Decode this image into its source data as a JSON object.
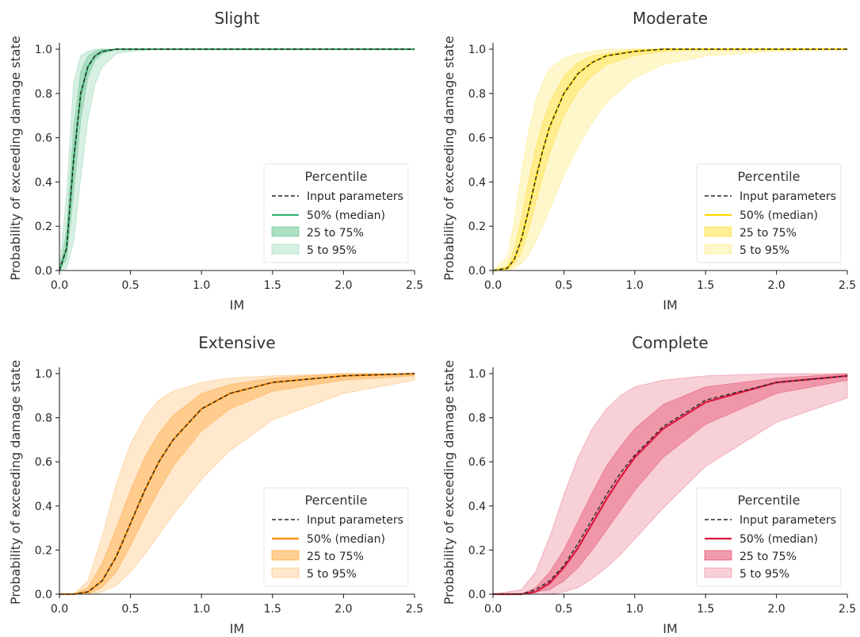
{
  "chart_data": [
    {
      "type": "area",
      "title": "Slight",
      "xlabel": "IM",
      "ylabel": "Probability of exceeding damage state",
      "xlim": [
        0,
        2.5
      ],
      "ylim": [
        0,
        1.0
      ],
      "xticks": [
        "0.0",
        "0.5",
        "1.0",
        "1.5",
        "2.0",
        "2.5"
      ],
      "yticks": [
        "0.0",
        "0.2",
        "0.4",
        "0.6",
        "0.8",
        "1.0"
      ],
      "color": "#3cb371",
      "legend": {
        "title": "Percentile",
        "position": "lower-right",
        "entries": [
          "Input parameters",
          "50% (median)",
          "25 to 75%",
          "5 to 95%"
        ]
      },
      "x": [
        0.0,
        0.05,
        0.1,
        0.15,
        0.2,
        0.25,
        0.3,
        0.4,
        0.5,
        0.7,
        1.0,
        1.5,
        2.0,
        2.5
      ],
      "series": [
        {
          "name": "Input parameters",
          "values": [
            0.0,
            0.1,
            0.5,
            0.8,
            0.92,
            0.97,
            0.99,
            1.0,
            1.0,
            1.0,
            1.0,
            1.0,
            1.0,
            1.0
          ]
        },
        {
          "name": "50% (median)",
          "values": [
            0.0,
            0.1,
            0.5,
            0.8,
            0.92,
            0.97,
            0.99,
            1.0,
            1.0,
            1.0,
            1.0,
            1.0,
            1.0,
            1.0
          ]
        },
        {
          "name": "25%",
          "values": [
            0.0,
            0.05,
            0.35,
            0.68,
            0.87,
            0.95,
            0.98,
            1.0,
            1.0,
            1.0,
            1.0,
            1.0,
            1.0,
            1.0
          ]
        },
        {
          "name": "75%",
          "values": [
            0.0,
            0.18,
            0.65,
            0.9,
            0.97,
            0.99,
            1.0,
            1.0,
            1.0,
            1.0,
            1.0,
            1.0,
            1.0,
            1.0
          ]
        },
        {
          "name": "5%",
          "values": [
            0.0,
            0.01,
            0.13,
            0.42,
            0.68,
            0.84,
            0.92,
            0.98,
            0.99,
            1.0,
            1.0,
            1.0,
            1.0,
            1.0
          ]
        },
        {
          "name": "95%",
          "values": [
            0.0,
            0.35,
            0.85,
            0.97,
            0.99,
            1.0,
            1.0,
            1.0,
            1.0,
            1.0,
            1.0,
            1.0,
            1.0,
            1.0
          ]
        }
      ]
    },
    {
      "type": "area",
      "title": "Moderate",
      "xlabel": "IM",
      "ylabel": "Probability of exceeding damage state",
      "xlim": [
        0,
        2.5
      ],
      "ylim": [
        0,
        1.0
      ],
      "xticks": [
        "0.0",
        "0.5",
        "1.0",
        "1.5",
        "2.0",
        "2.5"
      ],
      "yticks": [
        "0.0",
        "0.2",
        "0.4",
        "0.6",
        "0.8",
        "1.0"
      ],
      "color": "#ffd700",
      "legend": {
        "title": "Percentile",
        "position": "lower-right",
        "entries": [
          "Input parameters",
          "50% (median)",
          "25 to 75%",
          "5 to 95%"
        ]
      },
      "x": [
        0.0,
        0.1,
        0.15,
        0.2,
        0.25,
        0.3,
        0.35,
        0.4,
        0.5,
        0.6,
        0.7,
        0.8,
        1.0,
        1.2,
        1.5,
        2.0,
        2.5
      ],
      "series": [
        {
          "name": "Input parameters",
          "values": [
            0.0,
            0.01,
            0.05,
            0.14,
            0.27,
            0.41,
            0.54,
            0.65,
            0.8,
            0.89,
            0.94,
            0.97,
            0.99,
            1.0,
            1.0,
            1.0,
            1.0
          ]
        },
        {
          "name": "50% (median)",
          "values": [
            0.0,
            0.01,
            0.05,
            0.14,
            0.27,
            0.41,
            0.54,
            0.65,
            0.8,
            0.89,
            0.94,
            0.97,
            0.99,
            1.0,
            1.0,
            1.0,
            1.0
          ]
        },
        {
          "name": "25%",
          "values": [
            0.0,
            0.0,
            0.03,
            0.08,
            0.18,
            0.3,
            0.42,
            0.53,
            0.7,
            0.81,
            0.88,
            0.93,
            0.97,
            0.99,
            1.0,
            1.0,
            1.0
          ]
        },
        {
          "name": "75%",
          "values": [
            0.0,
            0.02,
            0.1,
            0.24,
            0.4,
            0.55,
            0.67,
            0.76,
            0.88,
            0.94,
            0.97,
            0.98,
            1.0,
            1.0,
            1.0,
            1.0,
            1.0
          ]
        },
        {
          "name": "5%",
          "values": [
            0.0,
            0.0,
            0.01,
            0.03,
            0.07,
            0.13,
            0.2,
            0.28,
            0.43,
            0.56,
            0.67,
            0.76,
            0.87,
            0.93,
            0.97,
            0.99,
            1.0
          ]
        },
        {
          "name": "95%",
          "values": [
            0.0,
            0.06,
            0.22,
            0.44,
            0.62,
            0.76,
            0.85,
            0.91,
            0.96,
            0.98,
            0.99,
            1.0,
            1.0,
            1.0,
            1.0,
            1.0,
            1.0
          ]
        }
      ]
    },
    {
      "type": "area",
      "title": "Extensive",
      "xlabel": "IM",
      "ylabel": "Probability of exceeding damage state",
      "xlim": [
        0,
        2.5
      ],
      "ylim": [
        0,
        1.0
      ],
      "xticks": [
        "0.0",
        "0.5",
        "1.0",
        "1.5",
        "2.0",
        "2.5"
      ],
      "yticks": [
        "0.0",
        "0.2",
        "0.4",
        "0.6",
        "0.8",
        "1.0"
      ],
      "color": "#ff8c00",
      "legend": {
        "title": "Percentile",
        "position": "lower-right",
        "entries": [
          "Input parameters",
          "50% (median)",
          "25 to 75%",
          "5 to 95%"
        ]
      },
      "x": [
        0.0,
        0.1,
        0.2,
        0.3,
        0.4,
        0.5,
        0.6,
        0.7,
        0.8,
        1.0,
        1.2,
        1.5,
        2.0,
        2.5
      ],
      "series": [
        {
          "name": "Input parameters",
          "values": [
            0.0,
            0.0,
            0.01,
            0.06,
            0.17,
            0.32,
            0.47,
            0.6,
            0.7,
            0.84,
            0.91,
            0.96,
            0.99,
            1.0
          ]
        },
        {
          "name": "50% (median)",
          "values": [
            0.0,
            0.0,
            0.01,
            0.06,
            0.17,
            0.32,
            0.47,
            0.6,
            0.7,
            0.84,
            0.91,
            0.96,
            0.99,
            1.0
          ]
        },
        {
          "name": "25%",
          "values": [
            0.0,
            0.0,
            0.0,
            0.03,
            0.1,
            0.22,
            0.35,
            0.47,
            0.58,
            0.74,
            0.84,
            0.92,
            0.97,
            0.99
          ]
        },
        {
          "name": "75%",
          "values": [
            0.0,
            0.0,
            0.03,
            0.14,
            0.3,
            0.47,
            0.62,
            0.73,
            0.81,
            0.91,
            0.95,
            0.98,
            1.0,
            1.0
          ]
        },
        {
          "name": "5%",
          "values": [
            0.0,
            0.0,
            0.0,
            0.01,
            0.04,
            0.1,
            0.18,
            0.27,
            0.36,
            0.52,
            0.65,
            0.79,
            0.91,
            0.97
          ]
        },
        {
          "name": "95%",
          "values": [
            0.0,
            0.0,
            0.06,
            0.26,
            0.5,
            0.68,
            0.8,
            0.88,
            0.92,
            0.96,
            0.98,
            0.99,
            1.0,
            1.0
          ]
        }
      ]
    },
    {
      "type": "area",
      "title": "Complete",
      "xlabel": "IM",
      "ylabel": "Probability of exceeding damage state",
      "xlim": [
        0,
        2.5
      ],
      "ylim": [
        0,
        1.0
      ],
      "xticks": [
        "0.0",
        "0.5",
        "1.0",
        "1.5",
        "2.0",
        "2.5"
      ],
      "yticks": [
        "0.0",
        "0.2",
        "0.4",
        "0.6",
        "0.8",
        "1.0"
      ],
      "color": "#dc143c",
      "legend": {
        "title": "Percentile",
        "position": "lower-right",
        "entries": [
          "Input parameters",
          "50% (median)",
          "25 to 75%",
          "5 to 95%"
        ]
      },
      "x": [
        0.0,
        0.2,
        0.3,
        0.4,
        0.5,
        0.6,
        0.7,
        0.8,
        0.9,
        1.0,
        1.2,
        1.5,
        2.0,
        2.5
      ],
      "series": [
        {
          "name": "Input parameters",
          "values": [
            0.0,
            0.0,
            0.02,
            0.06,
            0.13,
            0.23,
            0.34,
            0.45,
            0.55,
            0.63,
            0.76,
            0.88,
            0.96,
            0.99
          ]
        },
        {
          "name": "50% (median)",
          "values": [
            0.0,
            0.0,
            0.01,
            0.05,
            0.12,
            0.21,
            0.32,
            0.43,
            0.53,
            0.62,
            0.75,
            0.87,
            0.96,
            0.99
          ]
        },
        {
          "name": "25%",
          "values": [
            0.0,
            0.0,
            0.01,
            0.02,
            0.06,
            0.12,
            0.2,
            0.29,
            0.38,
            0.47,
            0.62,
            0.77,
            0.91,
            0.97
          ]
        },
        {
          "name": "75%",
          "values": [
            0.0,
            0.0,
            0.03,
            0.1,
            0.2,
            0.33,
            0.46,
            0.58,
            0.67,
            0.75,
            0.86,
            0.94,
            0.98,
            1.0
          ]
        },
        {
          "name": "5%",
          "values": [
            0.0,
            0.0,
            0.0,
            0.0,
            0.01,
            0.03,
            0.07,
            0.12,
            0.18,
            0.25,
            0.39,
            0.58,
            0.78,
            0.89
          ]
        },
        {
          "name": "95%",
          "values": [
            0.0,
            0.02,
            0.1,
            0.26,
            0.45,
            0.62,
            0.75,
            0.84,
            0.9,
            0.94,
            0.97,
            0.99,
            1.0,
            1.0
          ]
        }
      ]
    }
  ]
}
